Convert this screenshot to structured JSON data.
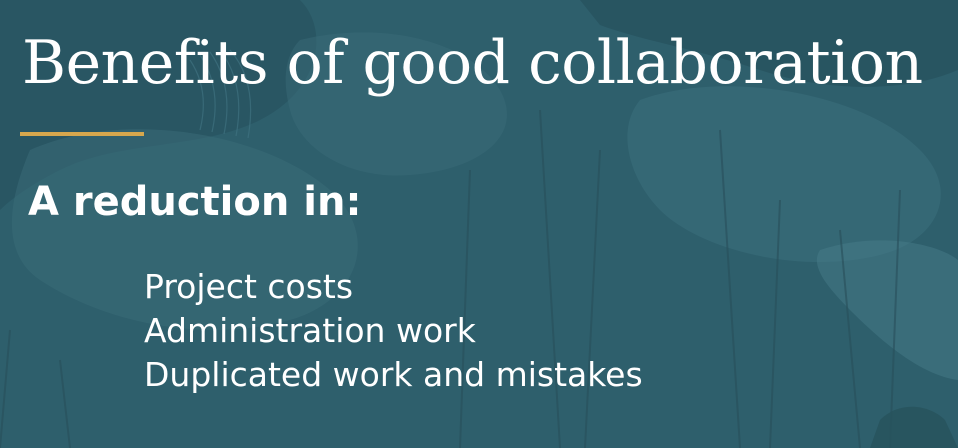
{
  "slide": {
    "title": "Benefits of good collaboration",
    "subheading": "A reduction in:",
    "items": [
      "Project costs",
      "Administration work",
      "Duplicated work and mistakes"
    ],
    "colors": {
      "background": "#2e5f6c",
      "accent_rule": "#d7a74d",
      "text": "#ffffff"
    }
  }
}
